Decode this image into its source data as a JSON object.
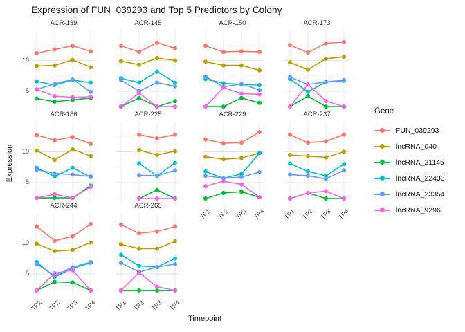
{
  "title": "Expression of FUN_039293 and Top 5 Predictors by Colony",
  "axes": {
    "x_label": "Timepoint",
    "y_label": "Expression",
    "x_tick_labels": [
      "TP1",
      "TP2",
      "TP3",
      "TP4"
    ],
    "y_tick_labels": [
      "5",
      "10"
    ]
  },
  "legend": {
    "title": "Gene",
    "entries": [
      {
        "label": "FUN_039293",
        "color": "#F8766D"
      },
      {
        "label": "lncRNA_040",
        "color": "#B79F00"
      },
      {
        "label": "lncRNA_21145",
        "color": "#00BA38"
      },
      {
        "label": "lncRNA_22433",
        "color": "#00BFC4"
      },
      {
        "label": "lncRNA_23354",
        "color": "#619CFF"
      },
      {
        "label": "lncRNA_9296",
        "color": "#F564E3"
      }
    ]
  },
  "chart_data": {
    "type": "line",
    "title": "Expression of FUN_039293 and Top 5 Predictors by Colony",
    "xlabel": "Timepoint",
    "ylabel": "Expression",
    "x": [
      "TP1",
      "TP2",
      "TP3",
      "TP4"
    ],
    "ylim": [
      1.5,
      14.9
    ],
    "y_major_ticks": [
      5,
      10
    ],
    "y_minor_ticks": [
      2.5,
      7.5,
      12.5
    ],
    "grid": true,
    "legend_position": "right",
    "facet_by": "Colony",
    "facets": [
      {
        "colony": "ACR-139",
        "series": [
          {
            "gene": "FUN_039293",
            "values": [
              11.2,
              11.8,
              12.4,
              11.5
            ]
          },
          {
            "gene": "lncRNA_040",
            "values": [
              9.1,
              9.2,
              10.1,
              8.9
            ]
          },
          {
            "gene": "lncRNA_21145",
            "values": [
              3.8,
              3.3,
              3.6,
              3.9
            ]
          },
          {
            "gene": "lncRNA_22433",
            "values": [
              6.6,
              6.0,
              6.8,
              6.4
            ]
          },
          {
            "gene": "lncRNA_23354",
            "values": [
              5.3,
              6.2,
              6.9,
              4.9
            ]
          },
          {
            "gene": "lncRNA_9296",
            "values": [
              5.3,
              4.2,
              4.0,
              4.1
            ]
          }
        ]
      },
      {
        "colony": "ACR-145",
        "series": [
          {
            "gene": "FUN_039293",
            "values": [
              12.4,
              11.4,
              12.9,
              12.0
            ]
          },
          {
            "gene": "lncRNA_040",
            "values": [
              9.9,
              9.3,
              10.4,
              10.0
            ]
          },
          {
            "gene": "lncRNA_21145",
            "values": [
              2.5,
              3.9,
              2.5,
              3.4
            ]
          },
          {
            "gene": "lncRNA_22433",
            "values": [
              7.1,
              6.4,
              8.2,
              6.4
            ]
          },
          {
            "gene": "lncRNA_23354",
            "values": [
              6.8,
              5.0,
              6.4,
              5.8
            ]
          },
          {
            "gene": "lncRNA_9296",
            "values": [
              2.5,
              4.7,
              2.5,
              2.5
            ]
          }
        ]
      },
      {
        "colony": "ACR-150",
        "series": [
          {
            "gene": "FUN_039293",
            "values": [
              12.4,
              11.4,
              11.5,
              11.4
            ]
          },
          {
            "gene": "lncRNA_040",
            "values": [
              9.8,
              9.2,
              9.2,
              8.4
            ]
          },
          {
            "gene": "lncRNA_21145",
            "values": [
              2.5,
              2.5,
              3.9,
              3.1
            ]
          },
          {
            "gene": "lncRNA_22433",
            "values": [
              7.0,
              6.3,
              6.1,
              6.0
            ]
          },
          {
            "gene": "lncRNA_23354",
            "values": [
              7.4,
              5.7,
              6.2,
              5.2
            ]
          },
          {
            "gene": "lncRNA_9296",
            "values": [
              2.5,
              5.6,
              4.6,
              4.5
            ]
          }
        ]
      },
      {
        "colony": "ACR-173",
        "series": [
          {
            "gene": "FUN_039293",
            "values": [
              12.5,
              11.3,
              12.8,
              13.0
            ]
          },
          {
            "gene": "lncRNA_040",
            "values": [
              9.7,
              8.5,
              10.3,
              10.6
            ]
          },
          {
            "gene": "lncRNA_21145",
            "values": [
              2.5,
              4.2,
              2.5,
              2.5
            ]
          },
          {
            "gene": "lncRNA_22433",
            "values": [
              7.0,
              4.9,
              6.5,
              6.7
            ]
          },
          {
            "gene": "lncRNA_23354",
            "values": [
              7.3,
              6.1,
              6.5,
              6.8
            ]
          },
          {
            "gene": "lncRNA_9296",
            "values": [
              2.5,
              6.1,
              3.4,
              2.5
            ]
          }
        ]
      },
      {
        "colony": "ACR-186",
        "series": [
          {
            "gene": "FUN_039293",
            "values": [
              12.7,
              11.9,
              12.4,
              11.3
            ]
          },
          {
            "gene": "lncRNA_040",
            "values": [
              10.2,
              8.7,
              10.4,
              9.3
            ]
          },
          {
            "gene": "lncRNA_21145",
            "values": [
              2.5,
              2.5,
              2.5,
              4.5
            ]
          },
          {
            "gene": "lncRNA_22433",
            "values": [
              7.4,
              6.0,
              7.4,
              5.9
            ]
          },
          {
            "gene": "lncRNA_23354",
            "values": [
              7.1,
              6.5,
              6.3,
              6.0
            ]
          },
          {
            "gene": "lncRNA_9296",
            "values": [
              2.5,
              3.1,
              2.5,
              4.3
            ]
          }
        ]
      },
      {
        "colony": "ACR-225",
        "series": [
          {
            "gene": "FUN_039293",
            "values": [
              null,
              12.8,
              12.2,
              12.8
            ]
          },
          {
            "gene": "lncRNA_040",
            "values": [
              null,
              10.3,
              9.5,
              10.1
            ]
          },
          {
            "gene": "lncRNA_21145",
            "values": [
              null,
              2.4,
              3.8,
              2.4
            ]
          },
          {
            "gene": "lncRNA_22433",
            "values": [
              null,
              8.1,
              6.1,
              8.2
            ]
          },
          {
            "gene": "lncRNA_23354",
            "values": [
              null,
              6.2,
              6.1,
              7.0
            ]
          },
          {
            "gene": "lncRNA_9296",
            "values": [
              null,
              2.4,
              2.4,
              2.4
            ]
          }
        ]
      },
      {
        "colony": "ACR-229",
        "series": [
          {
            "gene": "FUN_039293",
            "values": [
              12.0,
              11.4,
              11.5,
              13.2
            ]
          },
          {
            "gene": "lncRNA_040",
            "values": [
              9.2,
              8.8,
              9.0,
              9.8
            ]
          },
          {
            "gene": "lncRNA_21145",
            "values": [
              2.4,
              3.3,
              3.5,
              2.6
            ]
          },
          {
            "gene": "lncRNA_22433",
            "values": [
              6.8,
              5.7,
              6.4,
              9.8
            ]
          },
          {
            "gene": "lncRNA_23354",
            "values": [
              6.1,
              5.7,
              5.9,
              6.7
            ]
          },
          {
            "gene": "lncRNA_9296",
            "values": [
              4.4,
              5.2,
              4.7,
              2.6
            ]
          }
        ]
      },
      {
        "colony": "ACR-237",
        "series": [
          {
            "gene": "FUN_039293",
            "values": [
              12.8,
              11.5,
              11.7,
              12.8
            ]
          },
          {
            "gene": "lncRNA_040",
            "values": [
              9.5,
              9.3,
              9.1,
              10.0
            ]
          },
          {
            "gene": "lncRNA_21145",
            "values": [
              2.4,
              3.3,
              2.4,
              2.4
            ]
          },
          {
            "gene": "lncRNA_22433",
            "values": [
              8.1,
              6.8,
              6.1,
              8.0
            ]
          },
          {
            "gene": "lncRNA_23354",
            "values": [
              6.3,
              6.1,
              5.6,
              7.0
            ]
          },
          {
            "gene": "lncRNA_9296",
            "values": [
              2.4,
              3.3,
              3.6,
              2.4
            ]
          }
        ]
      },
      {
        "colony": "ACR-244",
        "series": [
          {
            "gene": "FUN_039293",
            "values": [
              12.7,
              10.4,
              11.1,
              13.1
            ]
          },
          {
            "gene": "lncRNA_040",
            "values": [
              9.9,
              8.7,
              8.9,
              10.1
            ]
          },
          {
            "gene": "lncRNA_21145",
            "values": [
              2.3,
              3.7,
              3.6,
              2.3
            ]
          },
          {
            "gene": "lncRNA_22433",
            "values": [
              6.9,
              4.5,
              5.9,
              6.8
            ]
          },
          {
            "gene": "lncRNA_23354",
            "values": [
              6.6,
              4.7,
              6.1,
              6.9
            ]
          },
          {
            "gene": "lncRNA_9296",
            "values": [
              2.3,
              5.1,
              5.6,
              2.3
            ]
          }
        ]
      },
      {
        "colony": "ACR-265",
        "series": [
          {
            "gene": "FUN_039293",
            "values": [
              13.0,
              11.6,
              11.9,
              12.7
            ]
          },
          {
            "gene": "lncRNA_040",
            "values": [
              9.8,
              9.1,
              9.1,
              10.3
            ]
          },
          {
            "gene": "lncRNA_21145",
            "values": [
              2.3,
              2.3,
              2.3,
              2.3
            ]
          },
          {
            "gene": "lncRNA_22433",
            "values": [
              8.1,
              6.3,
              6.1,
              7.5
            ]
          },
          {
            "gene": "lncRNA_23354",
            "values": [
              6.8,
              5.3,
              6.1,
              6.6
            ]
          },
          {
            "gene": "lncRNA_9296",
            "values": [
              2.3,
              5.2,
              2.9,
              2.3
            ]
          }
        ]
      }
    ]
  }
}
